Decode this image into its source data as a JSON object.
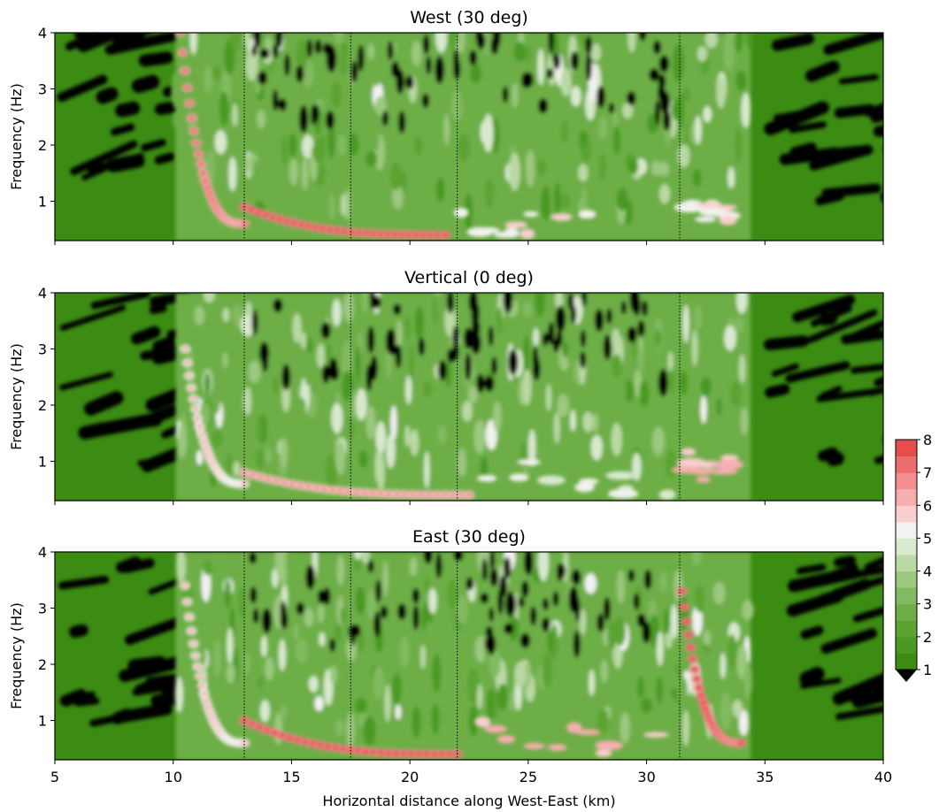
{
  "chart_data": {
    "type": "heatmap",
    "panels": [
      {
        "title": "West (30 deg)",
        "ylabel": "Frequency (Hz)",
        "xlim": [
          5,
          40
        ],
        "ylim": [
          0.3,
          4
        ],
        "yticks": [
          1,
          2,
          3,
          4
        ],
        "active_range_km": [
          10.1,
          34.4
        ],
        "high_intensity": [
          {
            "x": [
              10.3,
              13.0
            ],
            "y": [
              0.6,
              4.0
            ],
            "value": 7.0,
            "shape": "curve"
          },
          {
            "x": [
              13.0,
              21.5
            ],
            "y": [
              0.4,
              0.9
            ],
            "value": 7.5,
            "shape": "curve"
          },
          {
            "x": [
              22.0,
              31.0
            ],
            "y": [
              0.4,
              0.8
            ],
            "value": 6.5,
            "shape": "blobs"
          },
          {
            "x": [
              31.5,
              34.0
            ],
            "y": [
              0.6,
              1.0
            ],
            "value": 6.5,
            "shape": "blobs"
          }
        ]
      },
      {
        "title": "Vertical (0 deg)",
        "ylabel": "Frequency (Hz)",
        "xlim": [
          5,
          40
        ],
        "ylim": [
          0.3,
          4
        ],
        "yticks": [
          1,
          2,
          3,
          4
        ],
        "active_range_km": [
          10.1,
          34.4
        ],
        "high_intensity": [
          {
            "x": [
              10.5,
              13.0
            ],
            "y": [
              0.6,
              3.0
            ],
            "value": 6.0,
            "shape": "curve"
          },
          {
            "x": [
              13.0,
              22.5
            ],
            "y": [
              0.4,
              0.8
            ],
            "value": 6.5,
            "shape": "curve"
          },
          {
            "x": [
              22.5,
              31.0
            ],
            "y": [
              0.4,
              1.0
            ],
            "value": 6.0,
            "shape": "blobs"
          },
          {
            "x": [
              31.5,
              34.0
            ],
            "y": [
              0.6,
              1.2
            ],
            "value": 7.0,
            "shape": "blobs"
          }
        ]
      },
      {
        "title": "East (30 deg)",
        "ylabel": "Frequency (Hz)",
        "xlabel": "Horizontal distance along West-East (km)",
        "xlim": [
          5,
          40
        ],
        "ylim": [
          0.3,
          4
        ],
        "yticks": [
          1,
          2,
          3,
          4
        ],
        "xticks": [
          5,
          10,
          15,
          20,
          25,
          30,
          35,
          40
        ],
        "active_range_km": [
          10.1,
          34.4
        ],
        "high_intensity": [
          {
            "x": [
              10.5,
              13.0
            ],
            "y": [
              0.6,
              3.4
            ],
            "value": 6.0,
            "shape": "curve"
          },
          {
            "x": [
              13.0,
              22.0
            ],
            "y": [
              0.4,
              1.0
            ],
            "value": 7.5,
            "shape": "curve"
          },
          {
            "x": [
              22.0,
              31.0
            ],
            "y": [
              0.4,
              1.0
            ],
            "value": 7.0,
            "shape": "blobs"
          },
          {
            "x": [
              31.5,
              34.0
            ],
            "y": [
              0.6,
              3.3
            ],
            "value": 7.5,
            "shape": "curve"
          }
        ]
      }
    ],
    "vertical_dotted_lines_km": [
      13.0,
      17.5,
      22.0,
      31.4
    ],
    "colorbar": {
      "min": 1,
      "max": 8,
      "ticks": [
        1,
        2,
        3,
        4,
        5,
        6,
        7,
        8
      ],
      "extend": "min",
      "under_color": "#000000",
      "levels": [
        {
          "value": 1.0,
          "color": "#3c8c14"
        },
        {
          "value": 1.5,
          "color": "#4a9922"
        },
        {
          "value": 2.0,
          "color": "#5ba333"
        },
        {
          "value": 2.5,
          "color": "#6dae47"
        },
        {
          "value": 3.0,
          "color": "#82ba61"
        },
        {
          "value": 3.5,
          "color": "#9cc87f"
        },
        {
          "value": 4.0,
          "color": "#bad9a4"
        },
        {
          "value": 4.5,
          "color": "#d8e9cd"
        },
        {
          "value": 5.0,
          "color": "#f2f2f0"
        },
        {
          "value": 5.5,
          "color": "#f9cfcf"
        },
        {
          "value": 6.0,
          "color": "#f6afaf"
        },
        {
          "value": 6.5,
          "color": "#f28e8e"
        },
        {
          "value": 7.0,
          "color": "#ed6e6e"
        },
        {
          "value": 7.5,
          "color": "#e84d4d"
        }
      ]
    }
  }
}
